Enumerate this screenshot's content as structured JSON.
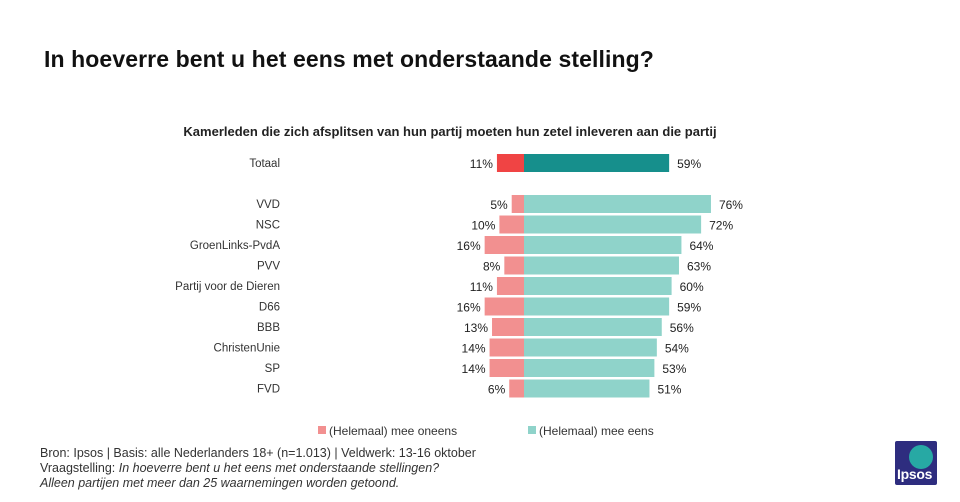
{
  "title": "In hoeverre bent u het eens met onderstaande stelling?",
  "chart_data": {
    "type": "bar",
    "subtitle": "Kamerleden die zich afsplitsen van hun partij moeten hun zetel inleveren aan die partij",
    "categories": [
      "Totaal",
      "VVD",
      "NSC",
      "GroenLinks-PvdA",
      "PVV",
      "Partij voor de Dieren",
      "D66",
      "BBB",
      "ChristenUnie",
      "SP",
      "FVD"
    ],
    "series": [
      {
        "name": "(Helemaal) mee oneens",
        "values": [
          11,
          5,
          10,
          16,
          8,
          11,
          16,
          13,
          14,
          14,
          6
        ],
        "labels": [
          "11%",
          "5%",
          "10%",
          "16%",
          "8%",
          "11%",
          "16%",
          "13%",
          "14%",
          "14%",
          "6%"
        ]
      },
      {
        "name": "(Helemaal) mee eens",
        "values": [
          59,
          76,
          72,
          64,
          63,
          60,
          59,
          56,
          54,
          53,
          51
        ],
        "labels": [
          "59%",
          "76%",
          "72%",
          "64%",
          "63%",
          "60%",
          "59%",
          "56%",
          "54%",
          "53%",
          "51%"
        ]
      }
    ],
    "legend": [
      "(Helemaal) mee oneens",
      "(Helemaal) mee eens"
    ],
    "legend_position": "bottom",
    "colors": {
      "disagree_total": "#f04444",
      "agree_total": "#168f8c",
      "disagree": "#f29090",
      "agree": "#8fd3ca"
    }
  },
  "footer": {
    "source": "Bron: Ipsos | Basis: alle Nederlanders  18+ (n=1.013) | Veldwerk: 13-16  oktober",
    "question_label": "Vraagstelling: ",
    "question_text": "In hoeverre  bent u het eens met onderstaande  stellingen?",
    "note": "Alleen partijen  met meer dan 25 waarnemingen  worden  getoond."
  },
  "logo": {
    "text": "Ipsos"
  }
}
